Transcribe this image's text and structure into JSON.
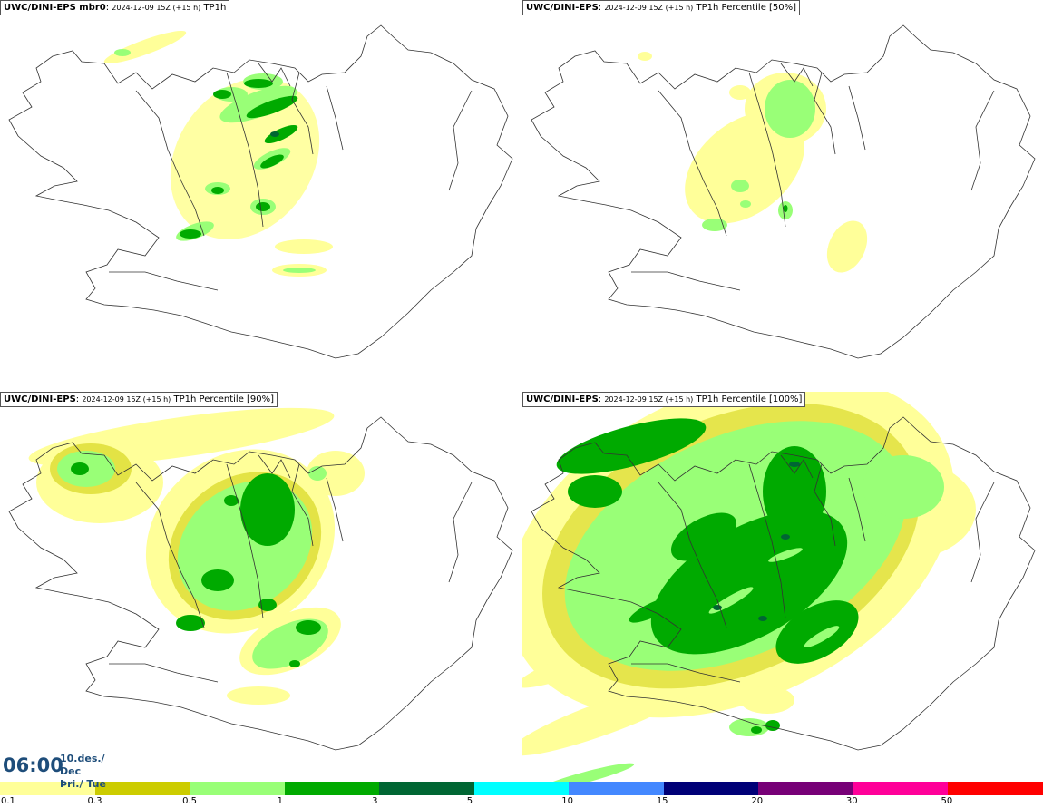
{
  "panels": [
    {
      "model": "UWC/DINI-EPS mbr0",
      "init": "2024-12-09 15Z (+15 h)",
      "field": "TP1h"
    },
    {
      "model": "UWC/DINI-EPS",
      "init": "2024-12-09 15Z (+15 h)",
      "field": "TP1h Percentile [50%]"
    },
    {
      "model": "UWC/DINI-EPS",
      "init": "2024-12-09 15Z (+15 h)",
      "field": "TP1h Percentile [90%]"
    },
    {
      "model": "UWC/DINI-EPS",
      "init": "2024-12-09 15Z (+15 h)",
      "field": "TP1h Percentile [100%]"
    }
  ],
  "valid_time": {
    "time": "06:00",
    "date": "10.des./ Dec",
    "weekday": "Þri./ Tue"
  },
  "legend": {
    "ticks": [
      "0.1",
      "0.3",
      "0.5",
      "1",
      "3",
      "5",
      "10",
      "15",
      "20",
      "30",
      "50"
    ],
    "colors": [
      "#ffff99",
      "#cccc00",
      "#99ff77",
      "#00aa00",
      "#006633",
      "#00ffff",
      "#4488ff",
      "#000077",
      "#770077",
      "#ff0099",
      "#ff0000"
    ]
  }
}
